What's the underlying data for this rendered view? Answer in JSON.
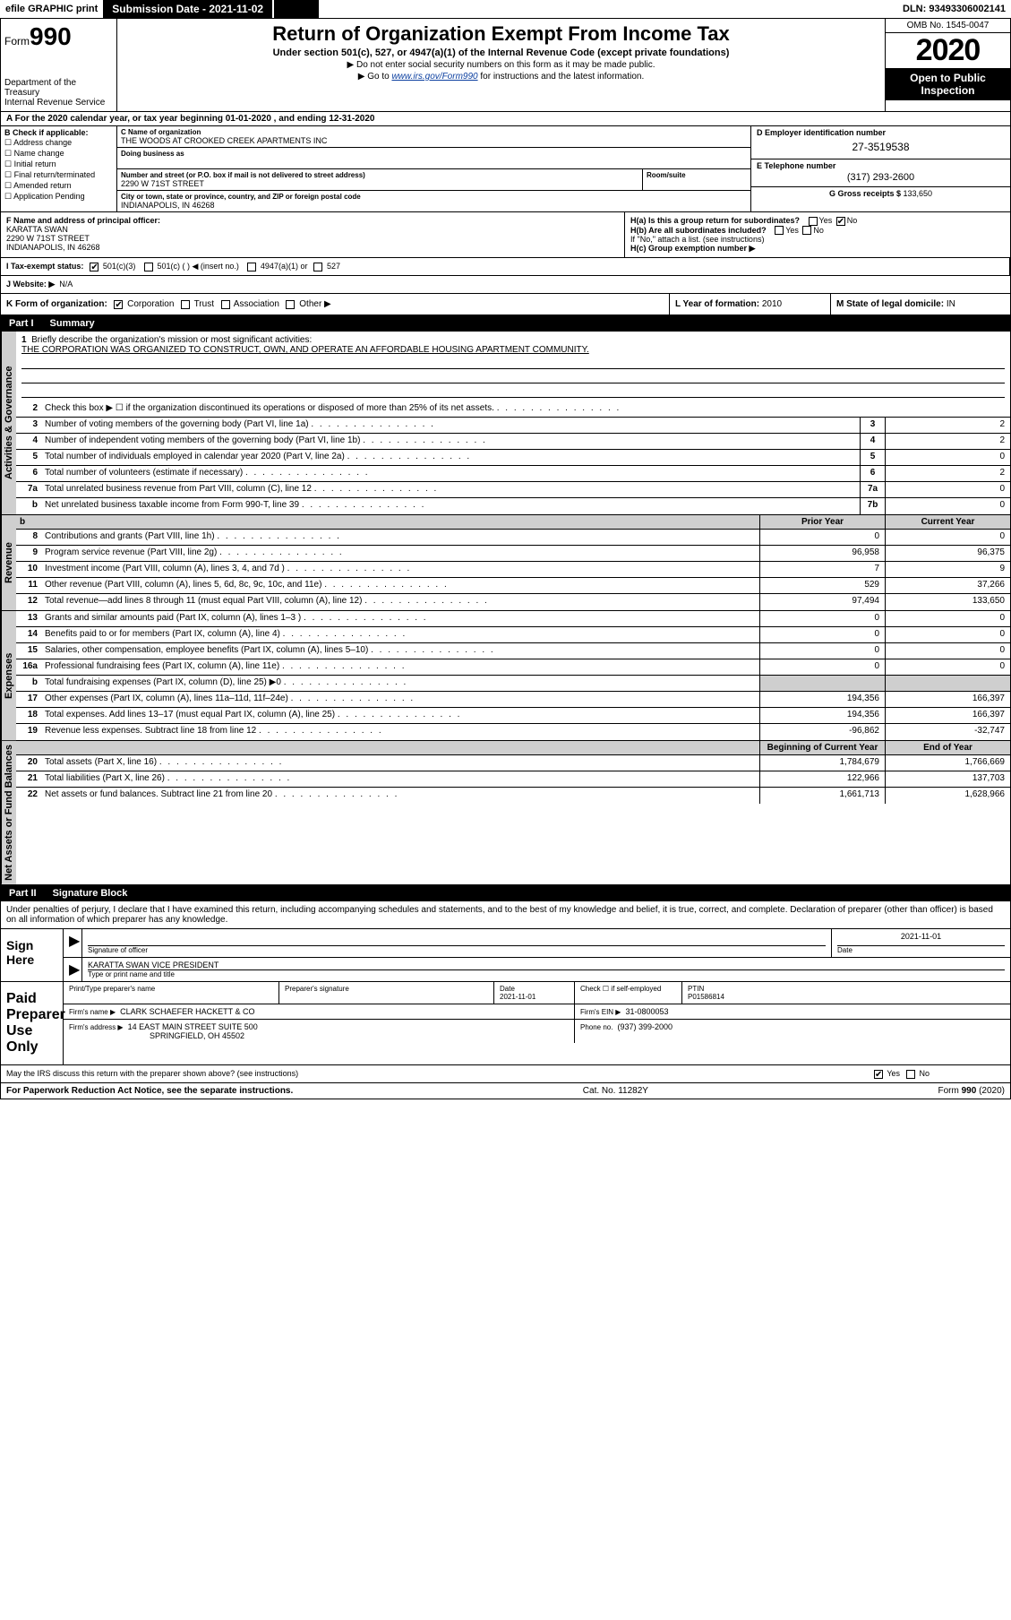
{
  "topbar": {
    "efile": "efile GRAPHIC print",
    "submission_label": "Submission Date - 2021-11-02",
    "dln": "DLN: 93493306002141"
  },
  "header": {
    "form_prefix": "Form",
    "form_number": "990",
    "dept": "Department of the Treasury",
    "irs": "Internal Revenue Service",
    "title": "Return of Organization Exempt From Income Tax",
    "sub": "Under section 501(c), 527, or 4947(a)(1) of the Internal Revenue Code (except private foundations)",
    "sub2a": "▶ Do not enter social security numbers on this form as it may be made public.",
    "sub2b_pre": "▶ Go to ",
    "sub2b_link": "www.irs.gov/Form990",
    "sub2b_post": " for instructions and the latest information.",
    "omb": "OMB No. 1545-0047",
    "year": "2020",
    "open": "Open to Public Inspection"
  },
  "row_a": "A For the 2020 calendar year, or tax year beginning 01-01-2020    , and ending 12-31-2020",
  "col_b": {
    "label": "B Check if applicable:",
    "items": [
      "Address change",
      "Name change",
      "Initial return",
      "Final return/terminated",
      "Amended return",
      "Application Pending"
    ]
  },
  "col_c": {
    "name_lbl": "C Name of organization",
    "name": "THE WOODS AT CROOKED CREEK APARTMENTS INC",
    "dba_lbl": "Doing business as",
    "addr_lbl": "Number and street (or P.O. box if mail is not delivered to street address)",
    "room_lbl": "Room/suite",
    "addr": "2290 W 71ST STREET",
    "city_lbl": "City or town, state or province, country, and ZIP or foreign postal code",
    "city": "INDIANAPOLIS, IN  46268"
  },
  "col_de": {
    "d_lbl": "D Employer identification number",
    "d_val": "27-3519538",
    "e_lbl": "E Telephone number",
    "e_val": "(317) 293-2600",
    "g_lbl": "G Gross receipts $",
    "g_val": "133,650"
  },
  "row_f": {
    "f_lbl": "F  Name and address of principal officer:",
    "f_name": "KARATTA SWAN",
    "f_addr1": "2290 W 71ST STREET",
    "f_addr2": "INDIANAPOLIS, IN  46268",
    "ha": "H(a)  Is this a group return for subordinates?",
    "ha_no_checked": true,
    "hb": "H(b)  Are all subordinates included?",
    "hb_note": "If \"No,\" attach a list. (see instructions)",
    "hc": "H(c)  Group exemption number ▶"
  },
  "row_i": {
    "label": "I    Tax-exempt status:",
    "opts": [
      "501(c)(3)",
      "501(c) (  ) ◀ (insert no.)",
      "4947(a)(1) or",
      "527"
    ],
    "checked_index": 0
  },
  "row_j": {
    "label": "J   Website: ▶",
    "val": "N/A"
  },
  "row_k": {
    "k": "K Form of organization:",
    "k_opts": [
      "Corporation",
      "Trust",
      "Association",
      "Other ▶"
    ],
    "k_checked_index": 0,
    "l": "L Year of formation:",
    "l_val": "2010",
    "m": "M State of legal domicile:",
    "m_val": "IN"
  },
  "part1": {
    "label": "Part I",
    "title": "Summary"
  },
  "briefly": {
    "num": "1",
    "text": "Briefly describe the organization's mission or most significant activities:",
    "mission": "THE CORPORATION WAS ORGANIZED TO CONSTRUCT, OWN, AND OPERATE AN AFFORDABLE HOUSING APARTMENT COMMUNITY."
  },
  "gov_lines": [
    {
      "num": "2",
      "desc": "Check this box ▶ ☐  if the organization discontinued its operations or disposed of more than 25% of its net assets.",
      "box": "",
      "val": ""
    },
    {
      "num": "3",
      "desc": "Number of voting members of the governing body (Part VI, line 1a)",
      "box": "3",
      "val": "2"
    },
    {
      "num": "4",
      "desc": "Number of independent voting members of the governing body (Part VI, line 1b)",
      "box": "4",
      "val": "2"
    },
    {
      "num": "5",
      "desc": "Total number of individuals employed in calendar year 2020 (Part V, line 2a)",
      "box": "5",
      "val": "0"
    },
    {
      "num": "6",
      "desc": "Total number of volunteers (estimate if necessary)",
      "box": "6",
      "val": "2"
    },
    {
      "num": "7a",
      "desc": "Total unrelated business revenue from Part VIII, column (C), line 12",
      "box": "7a",
      "val": "0"
    },
    {
      "num": "b",
      "desc": "Net unrelated business taxable income from Form 990-T, line 39",
      "box": "7b",
      "val": "0"
    }
  ],
  "rev_hdr": {
    "prior": "Prior Year",
    "current": "Current Year"
  },
  "rev_lines": [
    {
      "num": "8",
      "desc": "Contributions and grants (Part VIII, line 1h)",
      "prior": "0",
      "curr": "0"
    },
    {
      "num": "9",
      "desc": "Program service revenue (Part VIII, line 2g)",
      "prior": "96,958",
      "curr": "96,375"
    },
    {
      "num": "10",
      "desc": "Investment income (Part VIII, column (A), lines 3, 4, and 7d )",
      "prior": "7",
      "curr": "9"
    },
    {
      "num": "11",
      "desc": "Other revenue (Part VIII, column (A), lines 5, 6d, 8c, 9c, 10c, and 11e)",
      "prior": "529",
      "curr": "37,266"
    },
    {
      "num": "12",
      "desc": "Total revenue—add lines 8 through 11 (must equal Part VIII, column (A), line 12)",
      "prior": "97,494",
      "curr": "133,650"
    }
  ],
  "exp_lines": [
    {
      "num": "13",
      "desc": "Grants and similar amounts paid (Part IX, column (A), lines 1–3 )",
      "prior": "0",
      "curr": "0"
    },
    {
      "num": "14",
      "desc": "Benefits paid to or for members (Part IX, column (A), line 4)",
      "prior": "0",
      "curr": "0"
    },
    {
      "num": "15",
      "desc": "Salaries, other compensation, employee benefits (Part IX, column (A), lines 5–10)",
      "prior": "0",
      "curr": "0"
    },
    {
      "num": "16a",
      "desc": "Professional fundraising fees (Part IX, column (A), line 11e)",
      "prior": "0",
      "curr": "0"
    },
    {
      "num": "b",
      "desc": "Total fundraising expenses (Part IX, column (D), line 25) ▶0",
      "prior": "",
      "curr": "",
      "grey": true
    },
    {
      "num": "17",
      "desc": "Other expenses (Part IX, column (A), lines 11a–11d, 11f–24e)",
      "prior": "194,356",
      "curr": "166,397"
    },
    {
      "num": "18",
      "desc": "Total expenses. Add lines 13–17 (must equal Part IX, column (A), line 25)",
      "prior": "194,356",
      "curr": "166,397"
    },
    {
      "num": "19",
      "desc": "Revenue less expenses. Subtract line 18 from line 12",
      "prior": "-96,862",
      "curr": "-32,747"
    }
  ],
  "net_hdr": {
    "beg": "Beginning of Current Year",
    "end": "End of Year"
  },
  "net_lines": [
    {
      "num": "20",
      "desc": "Total assets (Part X, line 16)",
      "prior": "1,784,679",
      "curr": "1,766,669"
    },
    {
      "num": "21",
      "desc": "Total liabilities (Part X, line 26)",
      "prior": "122,966",
      "curr": "137,703"
    },
    {
      "num": "22",
      "desc": "Net assets or fund balances. Subtract line 21 from line 20",
      "prior": "1,661,713",
      "curr": "1,628,966"
    }
  ],
  "part2": {
    "label": "Part II",
    "title": "Signature Block"
  },
  "sig": {
    "penalties": "Under penalties of perjury, I declare that I have examined this return, including accompanying schedules and statements, and to the best of my knowledge and belief, it is true, correct, and complete. Declaration of preparer (other than officer) is based on all information of which preparer has any knowledge.",
    "sign_here": "Sign Here",
    "sig_officer_lbl": "Signature of officer",
    "sig_date": "2021-11-01",
    "sig_date_lbl": "Date",
    "officer_name": "KARATTA SWAN  VICE PRESIDENT",
    "officer_name_lbl": "Type or print name and title",
    "paid": "Paid Preparer Use Only",
    "prep_name_lbl": "Print/Type preparer's name",
    "prep_sig_lbl": "Preparer's signature",
    "prep_date_lbl": "Date",
    "prep_date": "2021-11-01",
    "prep_check_lbl": "Check ☐ if self-employed",
    "ptin_lbl": "PTIN",
    "ptin": "P01586814",
    "firm_name_lbl": "Firm's name    ▶",
    "firm_name": "CLARK SCHAEFER HACKETT & CO",
    "firm_ein_lbl": "Firm's EIN ▶",
    "firm_ein": "31-0800053",
    "firm_addr_lbl": "Firm's address ▶",
    "firm_addr1": "14 EAST MAIN STREET SUITE 500",
    "firm_addr2": "SPRINGFIELD, OH  45502",
    "phone_lbl": "Phone no.",
    "phone": "(937) 399-2000",
    "discuss": "May the IRS discuss this return with the preparer shown above? (see instructions)",
    "discuss_yes_checked": true
  },
  "footer": {
    "left": "For Paperwork Reduction Act Notice, see the separate instructions.",
    "mid": "Cat. No. 11282Y",
    "right": "Form 990 (2020)"
  },
  "vert": {
    "gov": "Activities & Governance",
    "rev": "Revenue",
    "exp": "Expenses",
    "net": "Net Assets or Fund Balances"
  },
  "colors": {
    "black": "#000000",
    "grey": "#cfcfcf",
    "link": "#0b3fa0"
  }
}
